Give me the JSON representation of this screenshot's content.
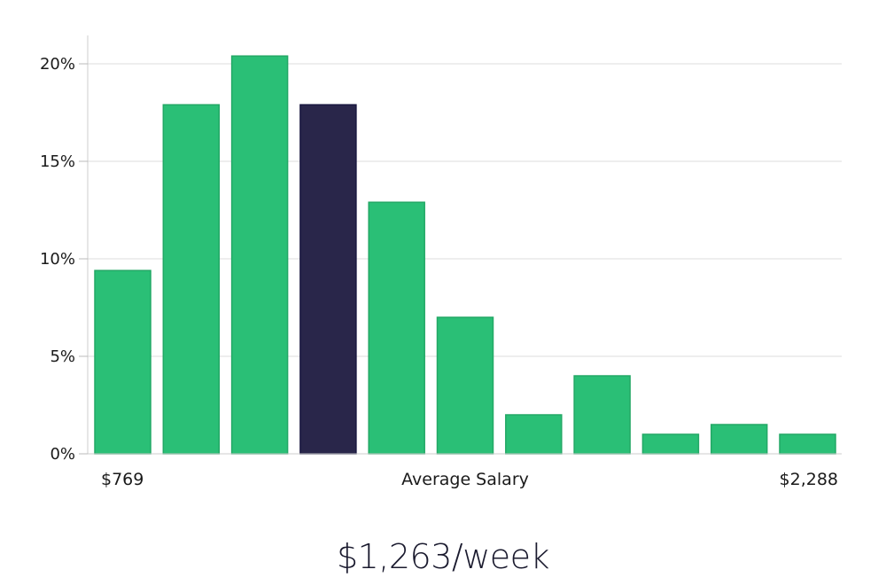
{
  "chart_data": {
    "type": "bar",
    "values": [
      9.4,
      17.9,
      20.4,
      17.9,
      12.9,
      7.0,
      2.0,
      4.0,
      1.0,
      1.5,
      1.0
    ],
    "highlight_index": 3,
    "ylim": [
      0,
      21.5
    ],
    "y_ticks": [
      0,
      5,
      10,
      15,
      20
    ],
    "y_tick_labels": [
      "0%",
      "5%",
      "10%",
      "15%",
      "20%"
    ],
    "x_min_label": "$769",
    "x_center_label": "Average Salary",
    "x_max_label": "$2,288",
    "grid": true,
    "colors": {
      "bar": "#2abf76",
      "bar_stroke": "#23a866",
      "highlight": "#29264a",
      "grid": "#dddddd",
      "axis": "#cccccc"
    }
  },
  "headline": "$1,263/week"
}
